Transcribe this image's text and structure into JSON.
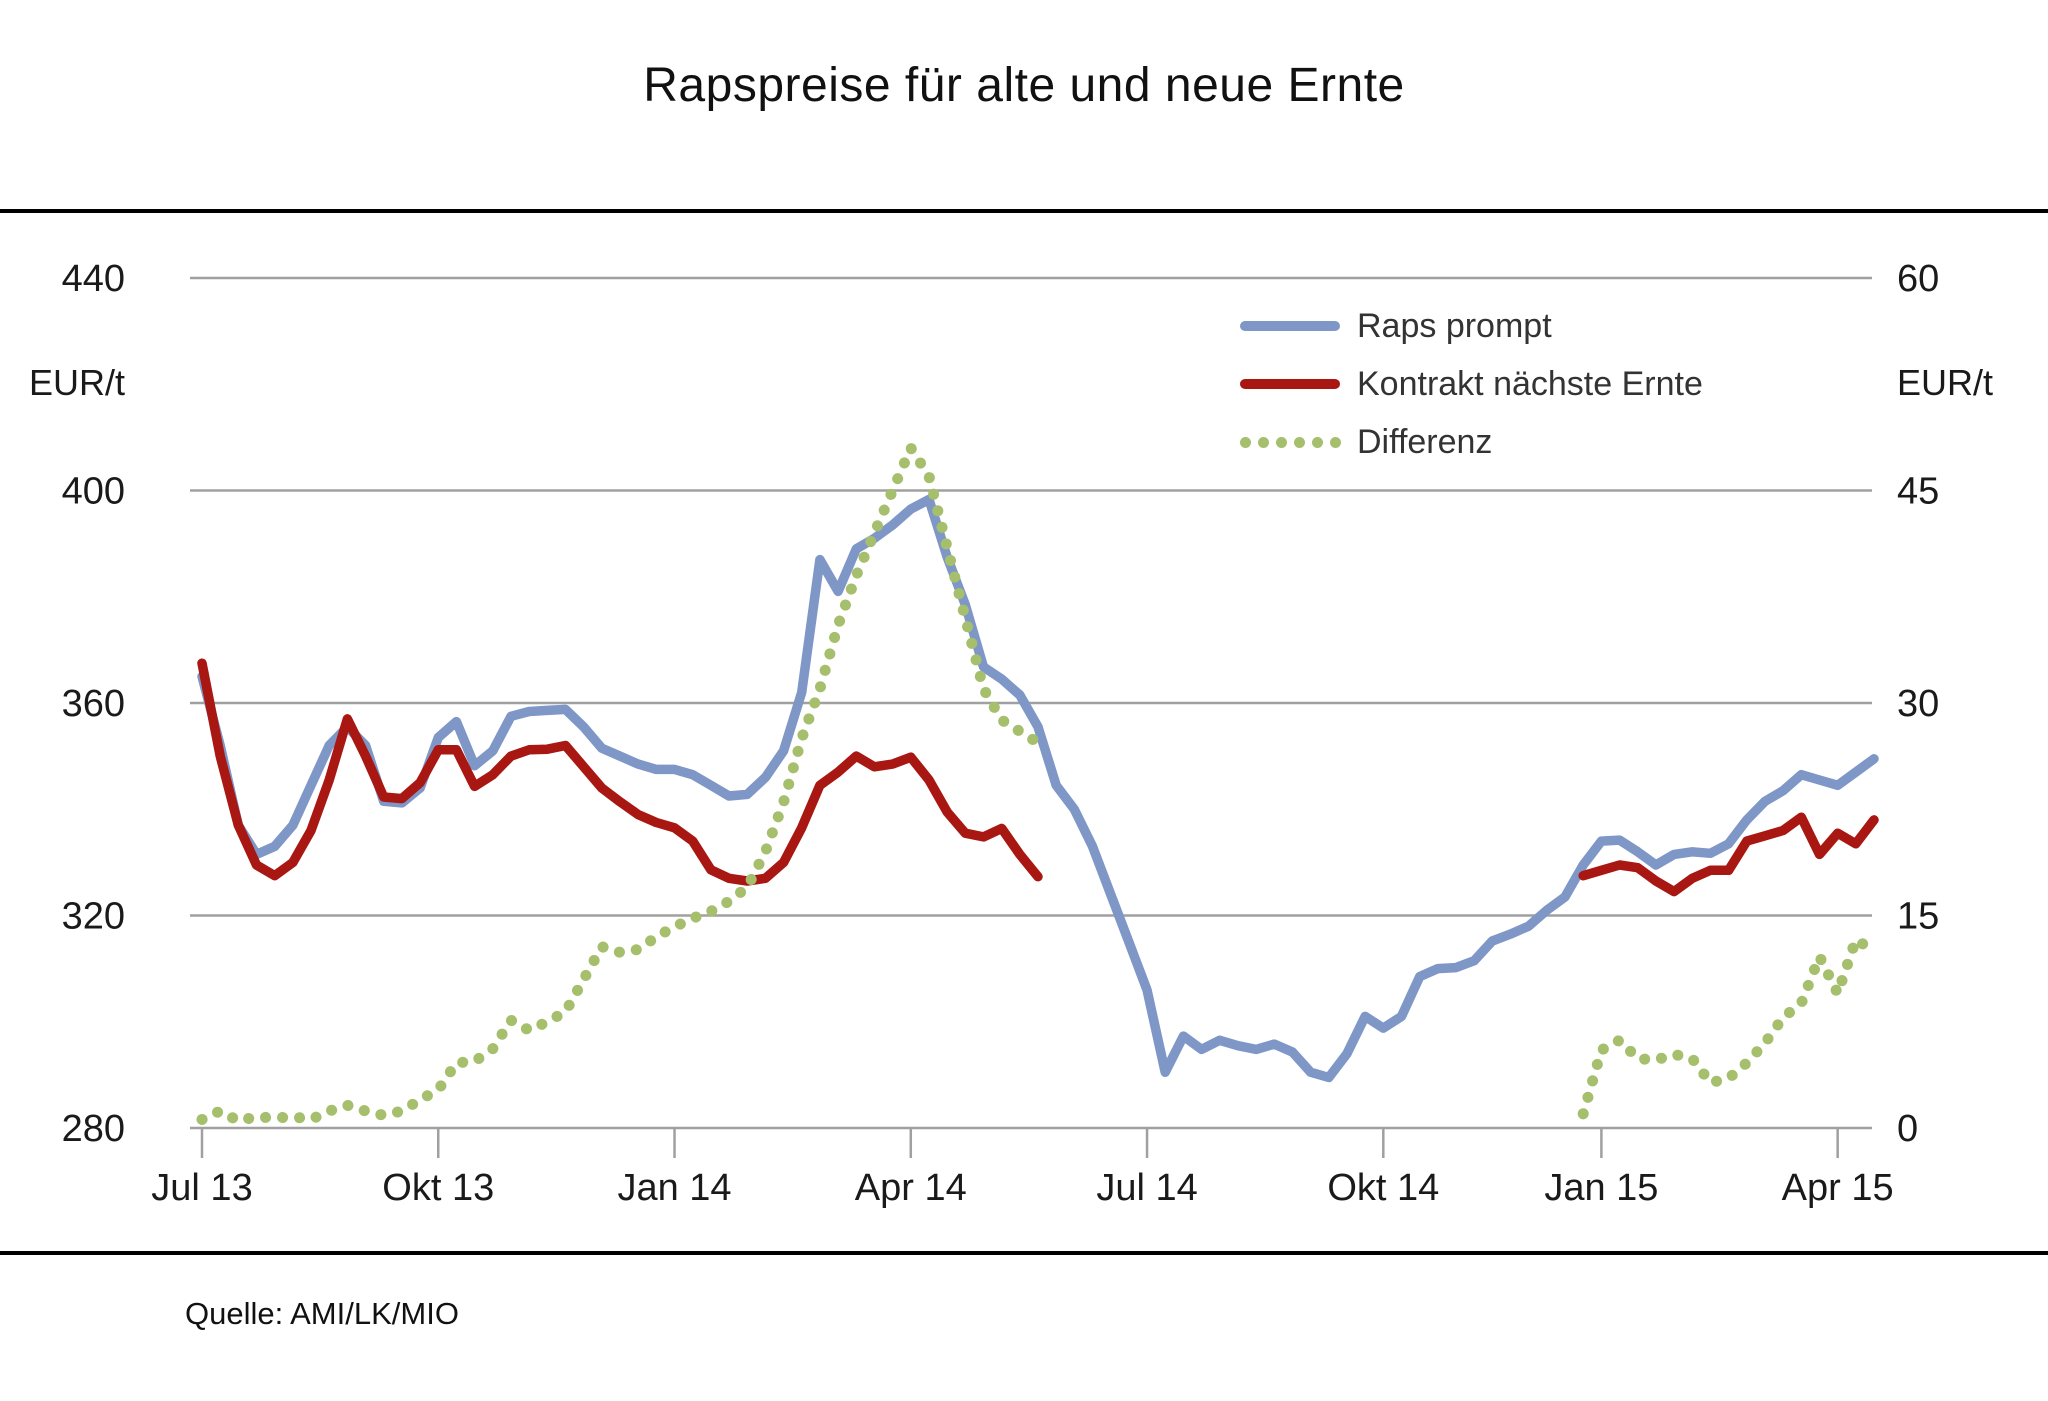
{
  "title": "Rapspreise für alte und neue Ernte",
  "source": "Quelle: AMI/LK/MIO",
  "chart_data": {
    "type": "line",
    "title": "Rapspreise für alte und neue Ernte",
    "ylabel_left": "EUR/t",
    "ylabel_right": "EUR/t",
    "axis_color": "#a0a0a0",
    "text_color": "#1a1a1a",
    "grid_on": true,
    "legend_position": "top-right",
    "x_axis": {
      "n_points": 93,
      "ticks": [
        {
          "label": "Jul 13",
          "week": 0
        },
        {
          "label": "Okt 13",
          "week": 13
        },
        {
          "label": "Jan 14",
          "week": 26
        },
        {
          "label": "Apr 14",
          "week": 39
        },
        {
          "label": "Jul 14",
          "week": 52
        },
        {
          "label": "Okt 14",
          "week": 65
        },
        {
          "label": "Jan 15",
          "week": 77
        },
        {
          "label": "Apr 15",
          "week": 90
        }
      ]
    },
    "y_left": {
      "unit": "EUR/t",
      "min": 280,
      "max": 440,
      "ticks": [
        440,
        400,
        360,
        320,
        280
      ]
    },
    "y_right": {
      "unit": "EUR/t",
      "min": 0,
      "max": 60,
      "ticks": [
        60,
        45,
        30,
        15,
        0
      ]
    },
    "series": [
      {
        "name": "Raps prompt",
        "color": "#7e97c6",
        "axis": "left",
        "style": "solid",
        "segments": [
          {
            "start_week": 0,
            "values": [
              365,
              352,
              337,
              331.5,
              333,
              337,
              344.5,
              352,
              355.5,
              352,
              341.5,
              341.2,
              344,
              353.5,
              356.5,
              348.2,
              351,
              357.5,
              358.4,
              358.6,
              358.8,
              355.5,
              351.5,
              350,
              348.5,
              347.5,
              347.5,
              346.5,
              344.5,
              342.5,
              342.8,
              346,
              351,
              362,
              387,
              381,
              389,
              391,
              393.5,
              396.5,
              398.3,
              387.5,
              378.5,
              366.8,
              364.5,
              361.5,
              355.5,
              344.5,
              340,
              333,
              324,
              315,
              306,
              290.5,
              297.3,
              294.8,
              296.5,
              295.5,
              294.8,
              295.8,
              294.3,
              290.5,
              289.5,
              294,
              301,
              298.8,
              301,
              308.5,
              310,
              310.2,
              311.5,
              315.2,
              316.5,
              318,
              321,
              323.5,
              329.5,
              334,
              334.2,
              332,
              329.5,
              331.5,
              332,
              331.7,
              333.5,
              338,
              341.5,
              343.5,
              346.5,
              345.5,
              344.5,
              347,
              349.5
            ]
          }
        ]
      },
      {
        "name": "Kontrakt nächste Ernte",
        "color": "#a91712",
        "axis": "left",
        "style": "solid",
        "segments": [
          {
            "start_week": 0,
            "values": [
              367.5,
              350,
              337,
              329.5,
              327.5,
              330,
              336,
              345.5,
              357,
              350,
              342.3,
              342,
              345,
              351.2,
              351.2,
              344.3,
              346.5,
              350,
              351.2,
              351.3,
              352,
              348,
              344,
              341.4,
              339,
              337.5,
              336.5,
              334,
              328.6,
              327,
              326.5,
              327,
              330,
              336.5,
              344.5,
              347,
              350,
              348,
              348.5,
              349.8,
              345.5,
              339.5,
              335.5,
              334.8,
              336.4,
              331.5,
              327.3
            ]
          },
          {
            "start_week": 76,
            "values": [
              327.5,
              328.5,
              329.5,
              329,
              326.5,
              324.5,
              327,
              328.5,
              328.5,
              334,
              335,
              336,
              338.5,
              331.5,
              335.5,
              333.5,
              338
            ]
          }
        ]
      },
      {
        "name": "Differenz",
        "color": "#a6bf6d",
        "axis": "right",
        "style": "dotted",
        "segments": [
          {
            "start_week": 0,
            "values": [
              0.6,
              1.2,
              0.5,
              0.8,
              0.7,
              0.8,
              0.6,
              1.2,
              1.6,
              1.2,
              0.9,
              1.2,
              2.0,
              2.7,
              4.6,
              4.7,
              5.6,
              7.6,
              6.9,
              7.5,
              8.2,
              10.5,
              12.8,
              12.4,
              12.6,
              13.5,
              14.2,
              14.8,
              15.3,
              16.0,
              17.0,
              19.5,
              23.0,
              27.5,
              31.0,
              35.5,
              39.0,
              42.0,
              45.0,
              48.0,
              46.0,
              41.0,
              36.0,
              31.0,
              28.8,
              28.0,
              27.2
            ]
          },
          {
            "start_week": 76,
            "values": [
              1.0,
              5.5,
              6.2,
              4.9,
              4.8,
              5.2,
              4.9,
              3.2,
              3.5,
              4.6,
              6.0,
              7.8,
              8.8,
              12.1,
              9.5,
              13.3,
              12.5
            ]
          }
        ]
      }
    ]
  }
}
